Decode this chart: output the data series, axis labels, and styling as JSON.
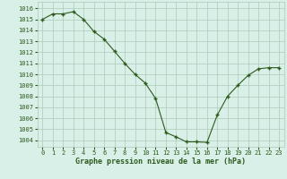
{
  "x": [
    0,
    1,
    2,
    3,
    4,
    5,
    6,
    7,
    8,
    9,
    10,
    11,
    12,
    13,
    14,
    15,
    16,
    17,
    18,
    19,
    20,
    21,
    22,
    23
  ],
  "y": [
    1015.0,
    1015.5,
    1015.5,
    1015.7,
    1015.0,
    1013.9,
    1013.2,
    1012.1,
    1011.0,
    1010.0,
    1009.2,
    1007.8,
    1004.7,
    1004.3,
    1003.85,
    1003.85,
    1003.8,
    1006.3,
    1008.0,
    1009.0,
    1009.9,
    1010.5,
    1010.6,
    1010.6
  ],
  "line_color": "#2d5a1b",
  "marker_color": "#2d5a1b",
  "bg_color": "#d8f0e8",
  "grid_color": "#adc8b8",
  "xlabel": "Graphe pression niveau de la mer (hPa)",
  "xlabel_color": "#2d5a1b",
  "ylabel_ticks": [
    1004,
    1005,
    1006,
    1007,
    1008,
    1009,
    1010,
    1011,
    1012,
    1013,
    1014,
    1015,
    1016
  ],
  "ylim": [
    1003.4,
    1016.6
  ],
  "xlim": [
    -0.5,
    23.5
  ],
  "xticks": [
    0,
    1,
    2,
    3,
    4,
    5,
    6,
    7,
    8,
    9,
    10,
    11,
    12,
    13,
    14,
    15,
    16,
    17,
    18,
    19,
    20,
    21,
    22,
    23
  ],
  "tick_fontsize": 5.0,
  "xlabel_fontsize": 6.0
}
